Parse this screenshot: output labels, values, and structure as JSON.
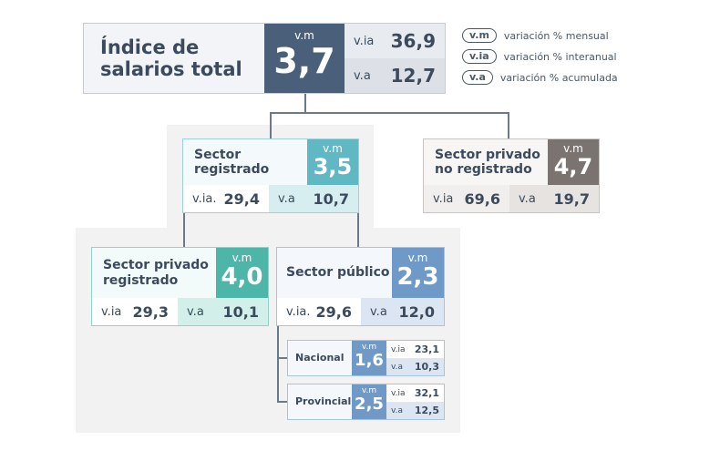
{
  "colors": {
    "navy": "#4a5f7a",
    "teal_light": "#5fb8c4",
    "teal_dark": "#4db6a8",
    "blue_public": "#6f9ac8",
    "gray_private": "#7a7370"
  },
  "total": {
    "title": "Índice de salarios total",
    "vm_key": "v.m",
    "vm_value": "3,7",
    "via_key": "v.ia",
    "via_value": "36,9",
    "va_key": "v.a",
    "va_value": "12,7"
  },
  "legend": [
    {
      "key": "v.m",
      "text": "variación % mensual"
    },
    {
      "key": "v.ia",
      "text": "variación % interanual"
    },
    {
      "key": "v.a",
      "text": "variación % acumulada"
    }
  ],
  "registrado": {
    "title": "Sector registrado",
    "vm_key": "v.m",
    "vm_value": "3,5",
    "via_key": "v.ia.",
    "via_value": "29,4",
    "va_key": "v.a",
    "va_value": "10,7"
  },
  "no_registrado": {
    "title": "Sector privado no registrado",
    "vm_key": "v.m",
    "vm_value": "4,7",
    "via_key": "v.ia",
    "via_value": "69,6",
    "va_key": "v.a",
    "va_value": "19,7"
  },
  "privado_registrado": {
    "title": "Sector privado registrado",
    "vm_key": "v.m",
    "vm_value": "4,0",
    "via_key": "v.ia",
    "via_value": "29,3",
    "va_key": "v.a",
    "va_value": "10,1"
  },
  "publico": {
    "title": "Sector público",
    "vm_key": "v.m",
    "vm_value": "2,3",
    "via_key": "v.ia.",
    "via_value": "29,6",
    "va_key": "v.a",
    "va_value": "12,0"
  },
  "nacional": {
    "title": "Nacional",
    "vm_key": "v.m",
    "vm_value": "1,6",
    "via_key": "v.ia",
    "via_value": "23,1",
    "va_key": "v.a",
    "va_value": "10,3"
  },
  "provincial": {
    "title": "Provincial",
    "vm_key": "v.m",
    "vm_value": "2,5",
    "via_key": "v.ia",
    "via_value": "32,1",
    "va_key": "v.a",
    "va_value": "12,5"
  }
}
